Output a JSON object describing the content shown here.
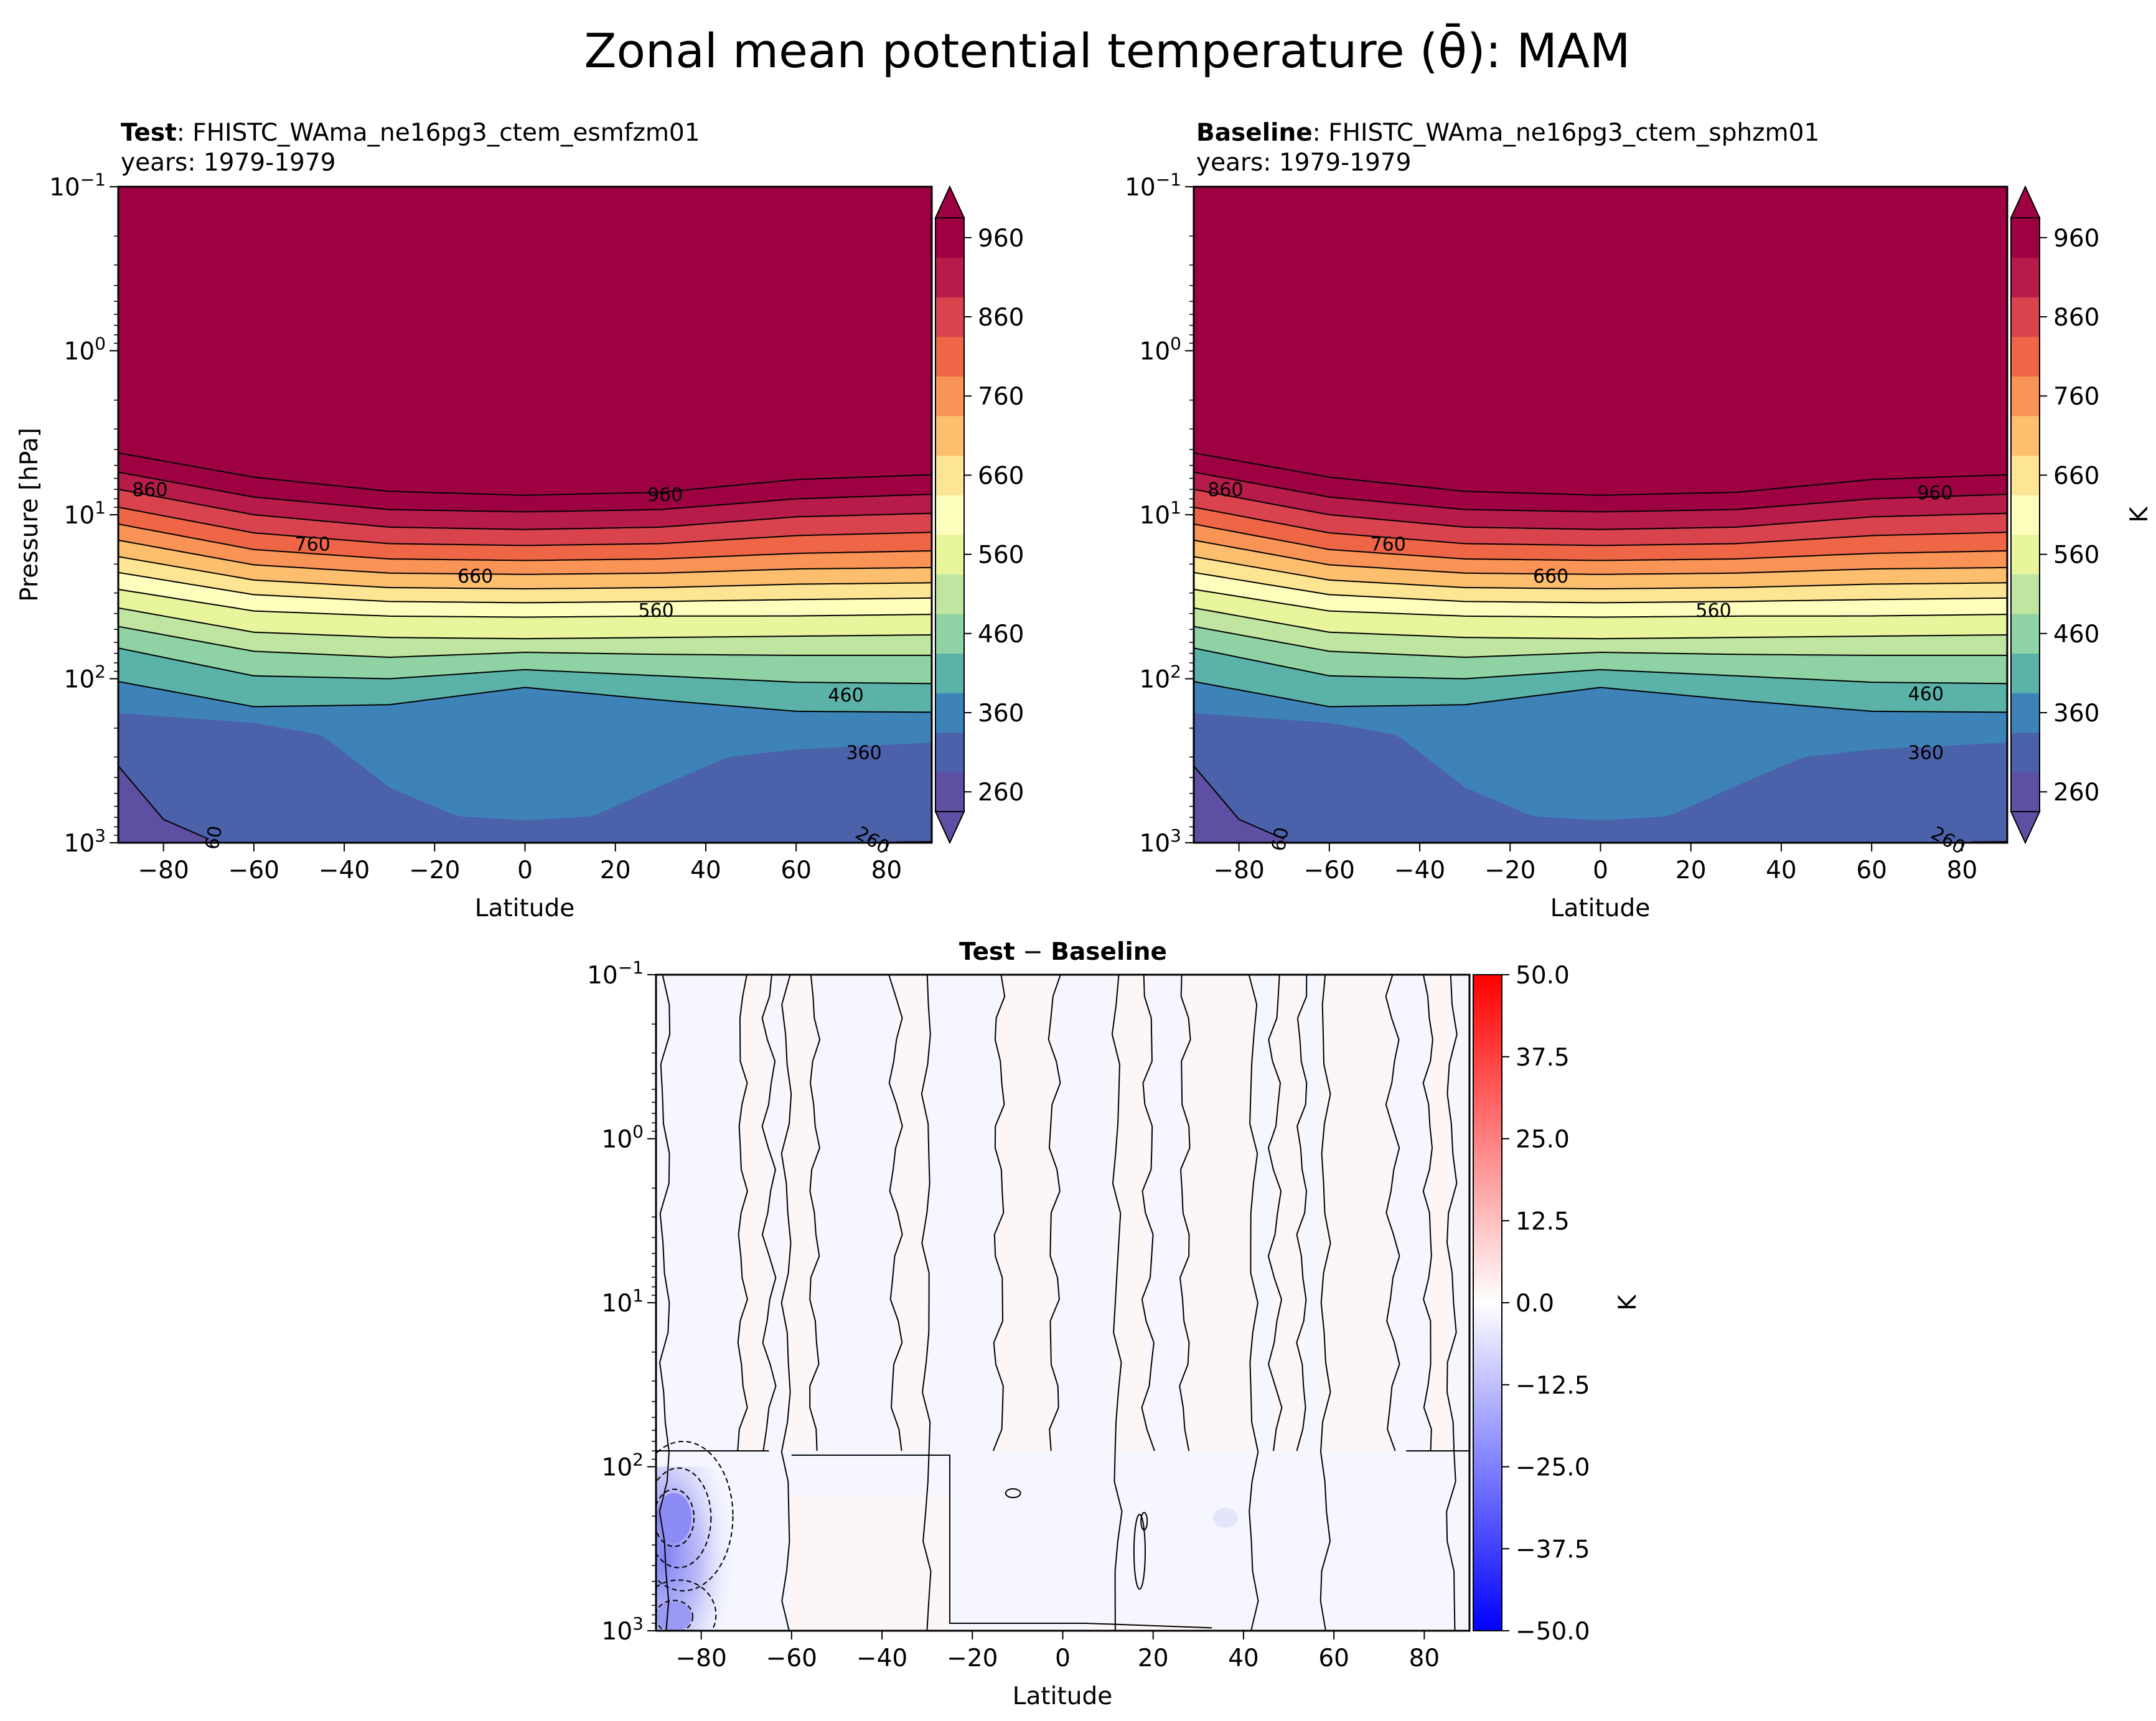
{
  "figure": {
    "title": "Zonal mean potential temperature (θ̄): MAM"
  },
  "chart_data": [
    {
      "type": "contour",
      "panel": "test",
      "title_bold": "Test",
      "title_rest": ": FHISTC_WAma_ne16pg3_ctem_esmfzm01",
      "subtitle": "years: 1979-1979",
      "xlabel": "Latitude",
      "ylabel": "Pressure [hPa]",
      "xlim": [
        -90,
        90
      ],
      "ylim": [
        1000,
        0.1
      ],
      "yscale": "log",
      "xticks": [
        -80,
        -60,
        -40,
        -20,
        0,
        20,
        40,
        60,
        80
      ],
      "xtick_labels": [
        "−80",
        "−60",
        "−40",
        "−20",
        "0",
        "20",
        "40",
        "60",
        "80"
      ],
      "yticks": [
        0.1,
        1,
        10,
        100,
        1000
      ],
      "ytick_labels": [
        {
          "b": "10",
          "e": "−1"
        },
        {
          "b": "10",
          "e": "0"
        },
        {
          "b": "10",
          "e": "1"
        },
        {
          "b": "10",
          "e": "2"
        },
        {
          "b": "10",
          "e": "3"
        }
      ],
      "contour_levels": [
        260,
        310,
        360,
        410,
        460,
        510,
        560,
        610,
        660,
        710,
        760,
        810,
        860,
        910,
        960
      ],
      "contour_labels": [
        {
          "text": "860",
          "lat": -83,
          "p": 7.0
        },
        {
          "text": "960",
          "lat": 31,
          "p": 7.5
        },
        {
          "text": "760",
          "lat": -47,
          "p": 15
        },
        {
          "text": "660",
          "lat": -11,
          "p": 23.5
        },
        {
          "text": "560",
          "lat": 29,
          "p": 38
        },
        {
          "text": "460",
          "lat": 71,
          "p": 125
        },
        {
          "text": "360",
          "lat": 75,
          "p": 280
        },
        {
          "text": "60",
          "lat": -69,
          "p": 930,
          "rotate": -80
        },
        {
          "text": "260",
          "lat": 77,
          "p": 960,
          "rotate": 30
        }
      ],
      "isolines": [
        {
          "level": 960,
          "lat": [
            -90,
            -60,
            -30,
            0,
            30,
            60,
            90
          ],
          "p": [
            4.2,
            5.9,
            7.2,
            7.6,
            7.3,
            6.1,
            5.7
          ]
        },
        {
          "level": 910,
          "lat": [
            -90,
            -60,
            -30,
            0,
            30,
            60,
            90
          ],
          "p": [
            5.5,
            7.8,
            9.3,
            9.6,
            9.3,
            8.0,
            7.5
          ]
        },
        {
          "level": 860,
          "lat": [
            -90,
            -60,
            -30,
            0,
            30,
            60,
            90
          ],
          "p": [
            7.0,
            10.0,
            11.9,
            12.3,
            11.9,
            10.3,
            9.8
          ]
        },
        {
          "level": 810,
          "lat": [
            -90,
            -60,
            -30,
            0,
            30,
            60,
            90
          ],
          "p": [
            9.0,
            12.9,
            15.0,
            15.4,
            15.0,
            13.4,
            12.8
          ]
        },
        {
          "level": 760,
          "lat": [
            -90,
            -60,
            -30,
            0,
            30,
            60,
            90
          ],
          "p": [
            11.4,
            16.3,
            18.6,
            19.0,
            18.6,
            17.2,
            16.6
          ]
        },
        {
          "level": 710,
          "lat": [
            -90,
            -60,
            -30,
            0,
            30,
            60,
            90
          ],
          "p": [
            14.3,
            20.2,
            22.7,
            23.1,
            22.7,
            21.4,
            21.0
          ]
        },
        {
          "level": 660,
          "lat": [
            -90,
            -60,
            -30,
            0,
            30,
            60,
            90
          ],
          "p": [
            18.0,
            25.0,
            27.8,
            28.3,
            27.8,
            26.5,
            26.0
          ]
        },
        {
          "level": 610,
          "lat": [
            -90,
            -60,
            -30,
            0,
            30,
            60,
            90
          ],
          "p": [
            22.5,
            30.7,
            33.8,
            34.4,
            33.8,
            32.9,
            32.2
          ]
        },
        {
          "level": 560,
          "lat": [
            -90,
            -60,
            -30,
            0,
            30,
            60,
            90
          ],
          "p": [
            28.5,
            38.6,
            41.5,
            42.1,
            41.5,
            41.4,
            40.5
          ]
        },
        {
          "level": 510,
          "lat": [
            -90,
            -60,
            -30,
            0,
            30,
            60,
            90
          ],
          "p": [
            37.0,
            52.0,
            56.0,
            57.0,
            56.0,
            55.0,
            54.0
          ]
        },
        {
          "level": 460,
          "lat": [
            -90,
            -60,
            -30,
            0,
            30,
            60,
            90
          ],
          "p": [
            48.0,
            68.0,
            74.0,
            69.0,
            71.0,
            72.0,
            72.0
          ]
        },
        {
          "level": 410,
          "lat": [
            -90,
            -60,
            -30,
            0,
            30,
            60,
            90
          ],
          "p": [
            65.0,
            96.0,
            100.0,
            88.0,
            96.0,
            105.0,
            107.0
          ]
        },
        {
          "level": 360,
          "lat": [
            -90,
            -60,
            -30,
            0,
            30,
            60,
            90
          ],
          "p": [
            104.0,
            148.0,
            144.0,
            113.0,
            135.0,
            158.0,
            160.0
          ]
        }
      ],
      "fill_boundaries": [
        {
          "between": [
            310,
            360
          ],
          "lat": [
            -90,
            -60,
            -45,
            -30,
            -15,
            0,
            15,
            30,
            45,
            60,
            90
          ],
          "p": [
            162,
            186,
            220,
            460,
            690,
            730,
            690,
            450,
            300,
            270,
            245
          ]
        },
        {
          "between": [
            260,
            310
          ],
          "lat": [
            -90,
            -80,
            -70
          ],
          "p": [
            340,
            720,
            950
          ]
        }
      ],
      "colorbar": {
        "label": "",
        "ticks": [
          960,
          860,
          760,
          660,
          560,
          460,
          360,
          260
        ],
        "extend": "both",
        "colors": [
          "#5e4fa2",
          "#4b61aa",
          "#3e83b8",
          "#5ab2a8",
          "#8fd2a4",
          "#bfe5a0",
          "#e8f59c",
          "#fefebd",
          "#fee593",
          "#fdbe6e",
          "#f99356",
          "#ee6645",
          "#d8434e",
          "#b61b4a",
          "#9e0142"
        ]
      }
    },
    {
      "type": "contour",
      "panel": "baseline",
      "title_bold": "Baseline",
      "title_rest": ": FHISTC_WAma_ne16pg3_ctem_sphzm01",
      "subtitle": "years: 1979-1979",
      "xlabel": "Latitude",
      "ylabel": "",
      "xlim": [
        -90,
        90
      ],
      "ylim": [
        1000,
        0.1
      ],
      "yscale": "log",
      "contour_labels": [
        {
          "text": "860",
          "lat": -83,
          "p": 7.0
        },
        {
          "text": "960",
          "lat": 74,
          "p": 7.3
        },
        {
          "text": "760",
          "lat": -47,
          "p": 15
        },
        {
          "text": "660",
          "lat": -11,
          "p": 23.5
        },
        {
          "text": "560",
          "lat": 25,
          "p": 38
        },
        {
          "text": "460",
          "lat": 72,
          "p": 123
        },
        {
          "text": "360",
          "lat": 72,
          "p": 280
        },
        {
          "text": "60",
          "lat": -71,
          "p": 950,
          "rotate": -80
        },
        {
          "text": "260",
          "lat": 77,
          "p": 960,
          "rotate": 30
        }
      ],
      "colorbar": {
        "label": "K",
        "ticks": [
          960,
          860,
          760,
          660,
          560,
          460,
          360,
          260
        ],
        "extend": "both"
      }
    },
    {
      "type": "contour",
      "panel": "difference",
      "title_bold": "Test",
      "title_mid": " − ",
      "title_bold2": "Baseline",
      "xlabel": "Latitude",
      "xlim": [
        -90,
        90
      ],
      "ylim": [
        1000,
        0.1
      ],
      "yscale": "log",
      "zero_contour_lats": [
        -88,
        -71,
        -65,
        -61,
        -55,
        -37,
        -30,
        -14,
        -2,
        12,
        19,
        27,
        42,
        47,
        53,
        58,
        73,
        81,
        86
      ],
      "negative_anomaly": {
        "lat_range": [
          -90,
          -70
        ],
        "p_range": [
          100,
          1000
        ],
        "min_value": -14
      },
      "colorbar": {
        "label": "K",
        "ticks": [
          50.0,
          37.5,
          25.0,
          12.5,
          0.0,
          -12.5,
          -25.0,
          -37.5,
          -50.0
        ],
        "tick_labels": [
          "50.0",
          "37.5",
          "25.0",
          "12.5",
          "0.0",
          "−12.5",
          "−25.0",
          "−37.5",
          "−50.0"
        ],
        "range": [
          -50,
          50
        ],
        "cmap": "bwr"
      }
    }
  ]
}
